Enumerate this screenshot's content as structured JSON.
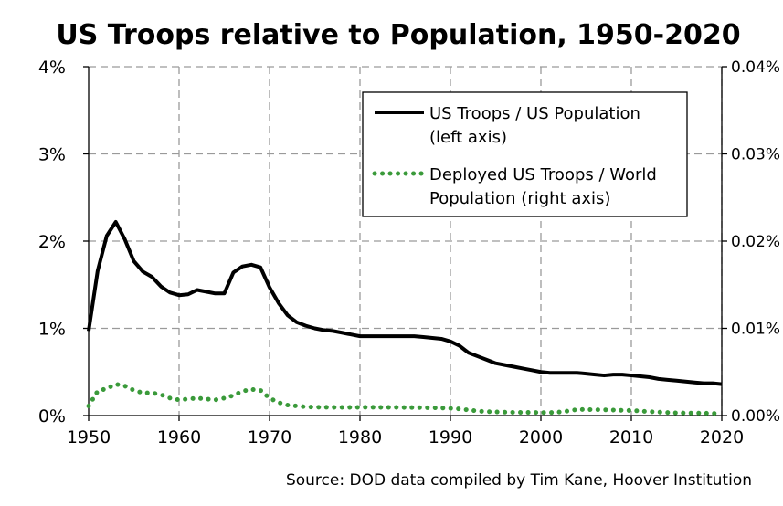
{
  "chart_data": {
    "type": "line",
    "title": "US Troops relative to Population, 1950-2020",
    "source": "Source: DOD data compiled by Tim Kane, Hoover Institution",
    "x_ticks": [
      "1950",
      "1960",
      "1970",
      "1980",
      "1990",
      "2000",
      "2010",
      "2020"
    ],
    "y_left_ticks": [
      "0%",
      "1%",
      "2%",
      "3%",
      "4%"
    ],
    "y_right_ticks": [
      "0.00%",
      "0.01%",
      "0.02%",
      "0.03%",
      "0.04%"
    ],
    "xlim": [
      1950,
      2020
    ],
    "ylim_left": [
      0,
      4
    ],
    "ylim_right": [
      0,
      0.04
    ],
    "grid": true,
    "legend_placement": "top-right",
    "series": [
      {
        "name": "US Troops / US Population (left axis)",
        "legend_lines": [
          "US Troops / US Population",
          "(left axis)"
        ],
        "axis": "left",
        "style": "solid",
        "color": "#000000",
        "x": [
          1950,
          1951,
          1952,
          1953,
          1954,
          1955,
          1956,
          1957,
          1958,
          1959,
          1960,
          1961,
          1962,
          1963,
          1964,
          1965,
          1966,
          1967,
          1968,
          1969,
          1970,
          1971,
          1972,
          1973,
          1974,
          1975,
          1976,
          1977,
          1978,
          1979,
          1980,
          1981,
          1982,
          1983,
          1984,
          1985,
          1986,
          1987,
          1988,
          1989,
          1990,
          1991,
          1992,
          1993,
          1994,
          1995,
          1996,
          1997,
          1998,
          1999,
          2000,
          2001,
          2002,
          2003,
          2004,
          2005,
          2006,
          2007,
          2008,
          2009,
          2010,
          2011,
          2012,
          2013,
          2014,
          2015,
          2016,
          2017,
          2018,
          2019,
          2020
        ],
        "values": [
          0.97,
          1.66,
          2.06,
          2.22,
          2.02,
          1.77,
          1.65,
          1.59,
          1.48,
          1.41,
          1.38,
          1.39,
          1.44,
          1.42,
          1.4,
          1.4,
          1.64,
          1.71,
          1.73,
          1.7,
          1.47,
          1.29,
          1.15,
          1.07,
          1.03,
          1.0,
          0.98,
          0.97,
          0.95,
          0.93,
          0.91,
          0.91,
          0.91,
          0.91,
          0.91,
          0.91,
          0.91,
          0.9,
          0.89,
          0.88,
          0.85,
          0.8,
          0.72,
          0.68,
          0.64,
          0.6,
          0.58,
          0.56,
          0.54,
          0.52,
          0.5,
          0.49,
          0.49,
          0.49,
          0.49,
          0.48,
          0.47,
          0.46,
          0.47,
          0.47,
          0.46,
          0.45,
          0.44,
          0.42,
          0.41,
          0.4,
          0.39,
          0.38,
          0.37,
          0.37,
          0.36
        ]
      },
      {
        "name": "Deployed US Troops / World Population (right axis)",
        "legend_lines": [
          "Deployed US Troops / World",
          "Population (right axis)"
        ],
        "axis": "right",
        "style": "dotted",
        "color": "#3a9a3a",
        "x": [
          1950,
          1951,
          1952,
          1953,
          1954,
          1955,
          1956,
          1957,
          1958,
          1959,
          1960,
          1961,
          1962,
          1963,
          1964,
          1965,
          1966,
          1967,
          1968,
          1969,
          1970,
          1971,
          1972,
          1973,
          1974,
          1975,
          1976,
          1977,
          1978,
          1979,
          1980,
          1981,
          1982,
          1983,
          1984,
          1985,
          1986,
          1987,
          1988,
          1989,
          1990,
          1991,
          1992,
          1993,
          1994,
          1995,
          1996,
          1997,
          1998,
          1999,
          2000,
          2001,
          2002,
          2003,
          2004,
          2005,
          2006,
          2007,
          2008,
          2009,
          2010,
          2011,
          2012,
          2013,
          2014,
          2015,
          2016,
          2017,
          2018,
          2019,
          2020
        ],
        "values": [
          0.0011,
          0.0028,
          0.0031,
          0.0036,
          0.0034,
          0.0029,
          0.0026,
          0.0026,
          0.0024,
          0.002,
          0.0018,
          0.0019,
          0.002,
          0.0019,
          0.0018,
          0.002,
          0.0023,
          0.0028,
          0.003,
          0.0029,
          0.002,
          0.0015,
          0.0012,
          0.0011,
          0.001,
          0.00097,
          0.00095,
          0.00095,
          0.00094,
          0.00094,
          0.00095,
          0.00095,
          0.00095,
          0.00094,
          0.00094,
          0.00093,
          0.00092,
          0.00091,
          0.00089,
          0.00087,
          0.00083,
          0.00076,
          0.00064,
          0.00052,
          0.00045,
          0.00042,
          0.00039,
          0.00037,
          0.00036,
          0.00036,
          0.00035,
          0.00034,
          0.0004,
          0.00052,
          0.00069,
          0.00069,
          0.00067,
          0.00066,
          0.00063,
          0.0006,
          0.00058,
          0.00052,
          0.00045,
          0.0004,
          0.00035,
          0.00031,
          0.0003,
          0.00029,
          0.00028,
          0.00025,
          0.00024
        ]
      }
    ]
  }
}
